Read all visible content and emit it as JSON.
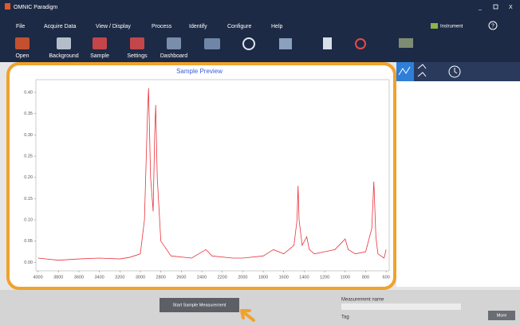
{
  "window": {
    "title": "OMNIC Paradigm"
  },
  "menu": [
    "File",
    "Acquire Data",
    "View / Display",
    "Process",
    "Identify",
    "Configure",
    "Help"
  ],
  "instrument": "Instrument",
  "toolbar": [
    "Open",
    "Background",
    "Sample",
    "Settings",
    "Dashboard"
  ],
  "chart_data": {
    "type": "line",
    "title": "Sample Preview",
    "x": [
      4000,
      3800,
      3600,
      3400,
      3200,
      3100,
      3000,
      2960,
      2930,
      2920,
      2900,
      2875,
      2860,
      2850,
      2835,
      2800,
      2700,
      2500,
      2360,
      2300,
      2100,
      2000,
      1800,
      1700,
      1600,
      1500,
      1470,
      1460,
      1450,
      1420,
      1375,
      1350,
      1300,
      1200,
      1100,
      1020,
      1000,
      970,
      900,
      800,
      740,
      720,
      700,
      680,
      620,
      600
    ],
    "series": [
      {
        "color": "#e8323c",
        "values": [
          0.01,
          0.005,
          0.008,
          0.01,
          0.008,
          0.012,
          0.02,
          0.1,
          0.35,
          0.41,
          0.2,
          0.12,
          0.3,
          0.37,
          0.2,
          0.05,
          0.015,
          0.01,
          0.03,
          0.015,
          0.01,
          0.01,
          0.015,
          0.03,
          0.02,
          0.04,
          0.1,
          0.18,
          0.1,
          0.04,
          0.06,
          0.03,
          0.02,
          0.025,
          0.03,
          0.05,
          0.055,
          0.03,
          0.02,
          0.025,
          0.08,
          0.19,
          0.06,
          0.02,
          0.01,
          0.03
        ]
      }
    ],
    "xlim": [
      4020,
      570
    ],
    "ylim": [
      -0.02,
      0.43
    ],
    "xticks": [
      4000,
      3800,
      3600,
      3400,
      3200,
      3000,
      2800,
      2600,
      2400,
      2200,
      2000,
      1800,
      1600,
      1400,
      1200,
      1000,
      800,
      600
    ],
    "yticks": [
      {
        "value": 0,
        "label": "0.00"
      },
      {
        "value": 0.05,
        "label": "0.05"
      },
      {
        "value": 0.1,
        "label": "0.10"
      },
      {
        "value": 0.15,
        "label": "0.15"
      },
      {
        "value": 0.2,
        "label": "0.20"
      },
      {
        "value": 0.25,
        "label": "0.25"
      },
      {
        "value": 0.3,
        "label": "0.30"
      },
      {
        "value": 0.35,
        "label": "0.35"
      },
      {
        "value": 0.4,
        "label": "0.40"
      }
    ]
  },
  "controls": {
    "start_button": "Start Sample Measurement",
    "measurement_name": "Measurement name",
    "tag": "Tag",
    "more": "More"
  }
}
